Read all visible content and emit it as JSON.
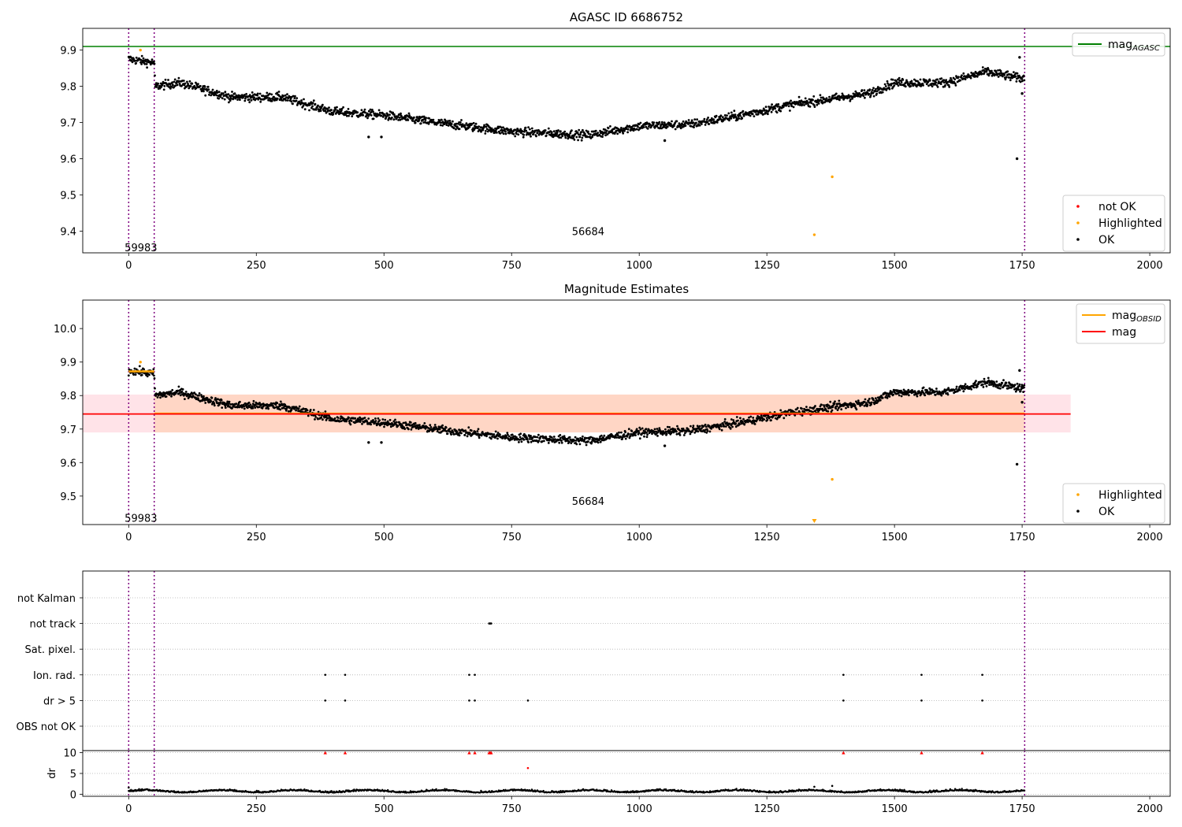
{
  "chart_data": [
    {
      "type": "scatter",
      "title": "AGASC ID 6686752",
      "xlim": [
        -90,
        2040
      ],
      "ylim": [
        9.34,
        9.96
      ],
      "xticks": [
        0,
        250,
        500,
        750,
        1000,
        1250,
        1500,
        1750,
        2000
      ],
      "yticks": [
        9.4,
        9.5,
        9.6,
        9.7,
        9.8,
        9.9
      ],
      "grid": false,
      "vlines": [
        0,
        50,
        1755
      ],
      "hlines": [
        {
          "name": "mag_AGASC",
          "y": 9.91,
          "color": "#008000"
        }
      ],
      "text_labels": [
        {
          "x": 24,
          "y": 9.355,
          "text": "59983"
        },
        {
          "x": 900,
          "y": 9.4,
          "text": "56684"
        }
      ],
      "legends": [
        {
          "placement": "top-right",
          "entries": [
            {
              "label": "mag",
              "sub": "AGASC",
              "kind": "line",
              "color": "#008000"
            }
          ]
        },
        {
          "placement": "lower-right",
          "entries": [
            {
              "label": "not OK",
              "kind": "dot",
              "color": "#ff0000"
            },
            {
              "label": "Highlighted",
              "kind": "dot",
              "color": "#ffa500"
            },
            {
              "label": "OK",
              "kind": "dot",
              "color": "#000000"
            }
          ]
        }
      ],
      "series": [
        {
          "name": "OK",
          "color": "#000000",
          "trend": [
            [
              0,
              9.875
            ],
            [
              50,
              9.865
            ],
            [
              52,
              9.8
            ],
            [
              100,
              9.81
            ],
            [
              200,
              9.77
            ],
            [
              300,
              9.77
            ],
            [
              400,
              9.73
            ],
            [
              500,
              9.72
            ],
            [
              600,
              9.7
            ],
            [
              750,
              9.675
            ],
            [
              900,
              9.665
            ],
            [
              1000,
              9.69
            ],
            [
              1100,
              9.695
            ],
            [
              1200,
              9.72
            ],
            [
              1300,
              9.75
            ],
            [
              1400,
              9.77
            ],
            [
              1450,
              9.78
            ],
            [
              1500,
              9.81
            ],
            [
              1600,
              9.81
            ],
            [
              1680,
              9.84
            ],
            [
              1755,
              9.82
            ]
          ]
        },
        {
          "name": "Highlighted",
          "color": "#ffa500",
          "points": [
            [
              23,
              9.9
            ],
            [
              1343,
              9.39
            ],
            [
              1378,
              9.55
            ]
          ]
        },
        {
          "name": "OK outliers",
          "color": "#000000",
          "points": [
            [
              1740,
              9.6
            ],
            [
              470,
              9.66
            ],
            [
              495,
              9.66
            ],
            [
              1050,
              9.65
            ],
            [
              1745,
              9.88
            ],
            [
              1750,
              9.78
            ]
          ]
        }
      ]
    },
    {
      "type": "scatter",
      "title": "Magnitude Estimates",
      "xlim": [
        -90,
        2040
      ],
      "ylim": [
        9.415,
        10.085
      ],
      "xticks": [
        0,
        250,
        500,
        750,
        1000,
        1250,
        1500,
        1750,
        2000
      ],
      "yticks": [
        9.5,
        9.6,
        9.7,
        9.8,
        9.9,
        10.0
      ],
      "grid": false,
      "vlines": [
        0,
        50,
        1755
      ],
      "bands": [
        {
          "x": [
            -90,
            1845
          ],
          "y": [
            9.69,
            9.803
          ],
          "color": "#ffc0cb"
        },
        {
          "x": [
            50,
            1755
          ],
          "y": [
            9.69,
            9.803
          ],
          "color": "#ffd2b9"
        }
      ],
      "hlines": [
        {
          "name": "mag_OBSID",
          "x": [
            0,
            50
          ],
          "y": 9.872,
          "color": "#ffa500"
        },
        {
          "name": "mag_OBSID",
          "x": [
            50,
            1755
          ],
          "y": 9.746,
          "color": "#ffa500"
        },
        {
          "name": "mag",
          "x": [
            -90,
            1845
          ],
          "y": 9.745,
          "color": "#ff0000"
        }
      ],
      "text_labels": [
        {
          "x": 24,
          "y": 9.435,
          "text": "59983"
        },
        {
          "x": 900,
          "y": 9.485,
          "text": "56684"
        }
      ],
      "legends": [
        {
          "placement": "top-right",
          "entries": [
            {
              "label": "mag",
              "sub": "OBSID",
              "kind": "line",
              "color": "#ffa500"
            },
            {
              "label": "mag",
              "kind": "line",
              "color": "#ff0000"
            }
          ]
        },
        {
          "placement": "lower-right",
          "entries": [
            {
              "label": "Highlighted",
              "kind": "dot",
              "color": "#ffa500"
            },
            {
              "label": "OK",
              "kind": "dot",
              "color": "#000000"
            }
          ]
        }
      ],
      "series": [
        {
          "name": "OK",
          "color": "#000000",
          "trend": [
            [
              0,
              9.875
            ],
            [
              50,
              9.865
            ],
            [
              52,
              9.8
            ],
            [
              100,
              9.81
            ],
            [
              200,
              9.77
            ],
            [
              300,
              9.77
            ],
            [
              400,
              9.73
            ],
            [
              500,
              9.72
            ],
            [
              600,
              9.7
            ],
            [
              750,
              9.675
            ],
            [
              900,
              9.665
            ],
            [
              1000,
              9.69
            ],
            [
              1100,
              9.695
            ],
            [
              1200,
              9.72
            ],
            [
              1300,
              9.75
            ],
            [
              1400,
              9.77
            ],
            [
              1450,
              9.78
            ],
            [
              1500,
              9.81
            ],
            [
              1600,
              9.81
            ],
            [
              1680,
              9.84
            ],
            [
              1755,
              9.82
            ]
          ]
        },
        {
          "name": "Highlighted",
          "color": "#ffa500",
          "points": [
            [
              23,
              9.9
            ],
            [
              1378,
              9.55
            ],
            [
              1343,
              9.42
            ]
          ]
        },
        {
          "name": "OK outliers",
          "color": "#000000",
          "points": [
            [
              1740,
              9.595
            ],
            [
              470,
              9.66
            ],
            [
              495,
              9.66
            ],
            [
              1050,
              9.65
            ],
            [
              1745,
              9.875
            ],
            [
              1750,
              9.78
            ]
          ]
        }
      ]
    },
    {
      "type": "scatter",
      "title": "",
      "xlim": [
        -90,
        2040
      ],
      "categories": [
        "not Kalman",
        "not track",
        "Sat. pixel.",
        "Ion. rad.",
        "dr > 5",
        "OBS not OK"
      ],
      "grid": true,
      "vlines": [
        0,
        50,
        1755
      ],
      "flags": [
        {
          "category": "not track",
          "x": [
            706,
            708,
            710
          ]
        },
        {
          "category": "Ion. rad.",
          "x": [
            385,
            424,
            667,
            678,
            1400,
            1553,
            1672
          ]
        },
        {
          "category": "dr > 5",
          "x": [
            385,
            424,
            667,
            678,
            782,
            1400,
            1553,
            1672
          ]
        }
      ]
    },
    {
      "type": "scatter",
      "title": "",
      "xlim": [
        -90,
        2040
      ],
      "ylim": [
        -0.5,
        10.5
      ],
      "ylabel": "dr",
      "xticks": [
        0,
        250,
        500,
        750,
        1000,
        1250,
        1500,
        1750,
        2000
      ],
      "yticks": [
        0,
        5,
        10
      ],
      "grid": true,
      "series": [
        {
          "name": "dr",
          "color": "#000000",
          "baseline": 0.6
        },
        {
          "name": "dr > 10",
          "color": "#ff0000",
          "marker": "triangle",
          "points": [
            [
              385,
              10
            ],
            [
              424,
              10
            ],
            [
              667,
              10
            ],
            [
              678,
              10
            ],
            [
              706,
              10
            ],
            [
              708,
              10
            ],
            [
              710,
              10
            ],
            [
              1400,
              10
            ],
            [
              1553,
              10
            ],
            [
              1672,
              10
            ]
          ]
        },
        {
          "name": "dr flagged",
          "color": "#ff0000",
          "points": [
            [
              782,
              6.3
            ]
          ]
        },
        {
          "name": "dr spikes",
          "color": "#000000",
          "points": [
            [
              1343,
              1.8
            ],
            [
              1378,
              2.0
            ],
            [
              0,
              1.6
            ]
          ]
        }
      ]
    }
  ]
}
